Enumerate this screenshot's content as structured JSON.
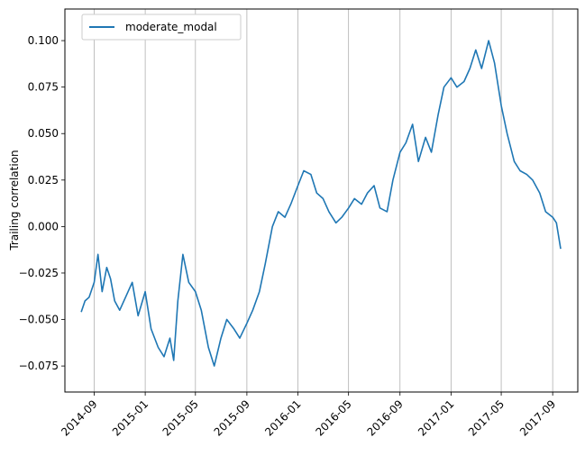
{
  "chart_data": {
    "type": "line",
    "title": "",
    "xlabel": "",
    "ylabel": "Trailing correlation",
    "x_ticks": [
      "2014-09",
      "2015-01",
      "2015-05",
      "2015-09",
      "2016-01",
      "2016-05",
      "2016-09",
      "2017-01",
      "2017-05",
      "2017-09"
    ],
    "y_ticks": [
      "−0.075",
      "−0.050",
      "−0.025",
      "0.000",
      "0.025",
      "0.050",
      "0.075",
      "0.100"
    ],
    "xlim": [
      "2014-06-23",
      "2017-10-31"
    ],
    "ylim": [
      -0.089,
      0.117
    ],
    "grid": "vertical",
    "legend": "upper-left",
    "series": [
      {
        "name": "moderate_modal",
        "color": "#1f77b4",
        "x": [
          "2014-08-01",
          "2014-08-10",
          "2014-08-20",
          "2014-09-01",
          "2014-09-10",
          "2014-09-20",
          "2014-10-01",
          "2014-10-10",
          "2014-10-20",
          "2014-11-01",
          "2014-11-15",
          "2014-12-01",
          "2014-12-15",
          "2015-01-01",
          "2015-01-15",
          "2015-02-01",
          "2015-02-15",
          "2015-03-01",
          "2015-03-10",
          "2015-03-20",
          "2015-04-01",
          "2015-04-15",
          "2015-05-01",
          "2015-05-15",
          "2015-06-01",
          "2015-06-15",
          "2015-07-01",
          "2015-07-15",
          "2015-08-01",
          "2015-08-15",
          "2015-09-01",
          "2015-09-15",
          "2015-10-01",
          "2015-10-15",
          "2015-11-01",
          "2015-11-15",
          "2015-12-01",
          "2015-12-15",
          "2016-01-01",
          "2016-01-15",
          "2016-02-01",
          "2016-02-15",
          "2016-03-01",
          "2016-03-15",
          "2016-04-01",
          "2016-04-15",
          "2016-05-01",
          "2016-05-15",
          "2016-06-01",
          "2016-06-15",
          "2016-07-01",
          "2016-07-15",
          "2016-08-01",
          "2016-08-15",
          "2016-09-01",
          "2016-09-15",
          "2016-10-01",
          "2016-10-15",
          "2016-11-01",
          "2016-11-15",
          "2016-12-01",
          "2016-12-15",
          "2017-01-01",
          "2017-01-15",
          "2017-02-01",
          "2017-02-15",
          "2017-03-01",
          "2017-03-15",
          "2017-04-01",
          "2017-04-15",
          "2017-05-01",
          "2017-05-15",
          "2017-06-01",
          "2017-06-15",
          "2017-07-01",
          "2017-07-15",
          "2017-08-01",
          "2017-08-15",
          "2017-09-01",
          "2017-09-10",
          "2017-09-20"
        ],
        "y": [
          -0.046,
          -0.04,
          -0.038,
          -0.03,
          -0.015,
          -0.035,
          -0.022,
          -0.028,
          -0.04,
          -0.045,
          -0.038,
          -0.03,
          -0.048,
          -0.035,
          -0.055,
          -0.065,
          -0.07,
          -0.06,
          -0.072,
          -0.04,
          -0.015,
          -0.03,
          -0.035,
          -0.045,
          -0.065,
          -0.075,
          -0.06,
          -0.05,
          -0.055,
          -0.06,
          -0.052,
          -0.045,
          -0.035,
          -0.02,
          0.0,
          0.008,
          0.005,
          0.012,
          0.022,
          0.03,
          0.028,
          0.018,
          0.015,
          0.008,
          0.002,
          0.005,
          0.01,
          0.015,
          0.012,
          0.018,
          0.022,
          0.01,
          0.008,
          0.025,
          0.04,
          0.045,
          0.055,
          0.035,
          0.048,
          0.04,
          0.06,
          0.075,
          0.08,
          0.075,
          0.078,
          0.085,
          0.095,
          0.085,
          0.1,
          0.088,
          0.065,
          0.05,
          0.035,
          0.03,
          0.028,
          0.025,
          0.018,
          0.008,
          0.005,
          0.002,
          -0.012
        ]
      }
    ]
  }
}
